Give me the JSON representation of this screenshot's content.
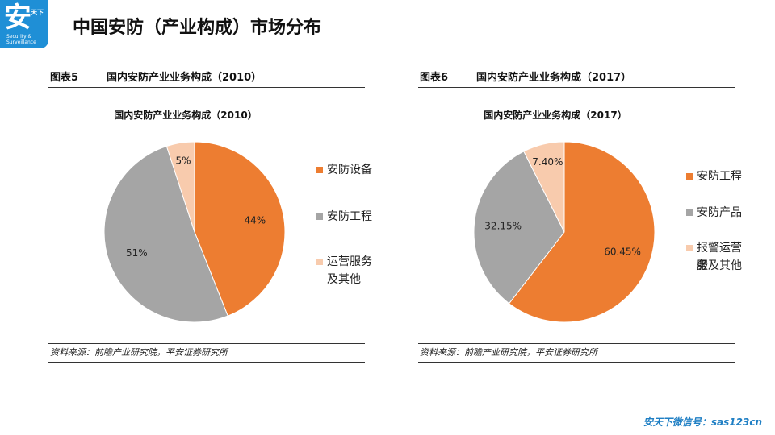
{
  "header": {
    "logo_text": "安",
    "logo_sub": "天下",
    "logo_en": "Security & Surveillance",
    "title": "中国安防（产业构成）市场分布"
  },
  "footer": {
    "text": "安天下微信号：sas123cn"
  },
  "colors": {
    "orange": "#ED7D31",
    "gray": "#A5A5A5",
    "peach": "#F8CBAD",
    "brand": "#1F8FD6"
  },
  "panels": [
    {
      "fig": "图表5",
      "caption": "国内安防产业业务构成（2010）",
      "source": "资料来源：前瞻产业研究院，平安证券研究所"
    },
    {
      "fig": "图表6",
      "caption": "国内安防产业业务构成（2017）",
      "source": "资料来源：前瞻产业研究院，平安证券研究所"
    }
  ],
  "chart_data": [
    {
      "type": "pie",
      "title": "国内安防产业业务构成（2010）",
      "slices": [
        {
          "label": "安防设备",
          "value": 44,
          "display": "44%",
          "color": "#ED7D31"
        },
        {
          "label": "安防工程",
          "value": 51,
          "display": "51%",
          "color": "#A5A5A5"
        },
        {
          "label": "运营服务及其他",
          "value": 5,
          "display": "5%",
          "color": "#F8CBAD"
        }
      ],
      "legend": [
        "安防设备",
        "安防工程",
        "运营服务",
        "及其他"
      ],
      "legend_placement": "right"
    },
    {
      "type": "pie",
      "title": "国内安防产业业务构成（2017）",
      "slices": [
        {
          "label": "安防工程",
          "value": 60.45,
          "display": "60.45%",
          "color": "#ED7D31"
        },
        {
          "label": "安防产品",
          "value": 32.15,
          "display": "32.15%",
          "color": "#A5A5A5"
        },
        {
          "label": "报警运营服务及其他",
          "value": 7.4,
          "display": "7.40%",
          "color": "#F8CBAD"
        }
      ],
      "legend": [
        "安防工程",
        "安防产品",
        "报警运营服",
        "务及其他"
      ],
      "legend_placement": "right"
    }
  ]
}
